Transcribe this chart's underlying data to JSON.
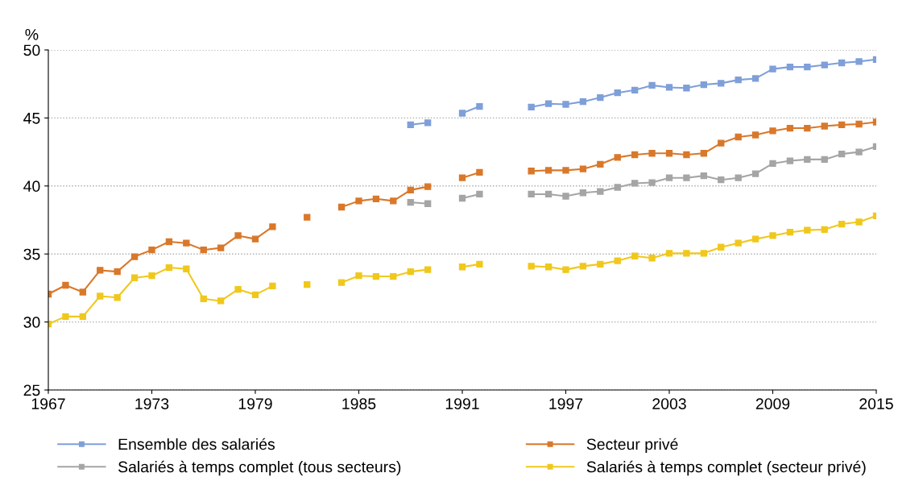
{
  "chart_data": {
    "type": "line",
    "ylabel": "%",
    "x": [
      1967,
      1968,
      1969,
      1970,
      1971,
      1972,
      1973,
      1974,
      1975,
      1976,
      1977,
      1978,
      1979,
      1980,
      1981,
      1982,
      1983,
      1984,
      1985,
      1986,
      1987,
      1988,
      1989,
      1990,
      1991,
      1992,
      1993,
      1994,
      1995,
      1996,
      1997,
      1998,
      1999,
      2000,
      2001,
      2002,
      2003,
      2004,
      2005,
      2006,
      2007,
      2008,
      2009,
      2010,
      2011,
      2012,
      2013,
      2014,
      2015
    ],
    "series": [
      {
        "name": "Ensemble des salariés",
        "color": "#7f9fd9",
        "values": [
          null,
          null,
          null,
          null,
          null,
          null,
          null,
          null,
          null,
          null,
          null,
          null,
          null,
          null,
          null,
          null,
          null,
          null,
          null,
          null,
          null,
          44.5,
          44.65,
          null,
          45.35,
          45.85,
          null,
          null,
          45.8,
          46.05,
          46.0,
          46.2,
          46.5,
          46.85,
          47.05,
          47.4,
          47.25,
          47.2,
          47.45,
          47.55,
          47.8,
          47.9,
          48.6,
          48.75,
          48.75,
          48.9,
          49.05,
          49.15,
          49.3
        ]
      },
      {
        "name": "Secteur privé",
        "color": "#d9782a",
        "values": [
          32.05,
          32.7,
          32.2,
          33.8,
          33.7,
          34.8,
          35.3,
          35.9,
          35.8,
          35.3,
          35.45,
          36.35,
          36.1,
          37.0,
          null,
          37.7,
          null,
          38.45,
          38.9,
          39.05,
          38.9,
          39.7,
          39.95,
          null,
          40.6,
          41.0,
          null,
          null,
          41.1,
          41.15,
          41.15,
          41.25,
          41.6,
          42.1,
          42.3,
          42.4,
          42.4,
          42.3,
          42.4,
          43.15,
          43.6,
          43.75,
          44.05,
          44.25,
          44.25,
          44.4,
          44.5,
          44.55,
          44.7
        ]
      },
      {
        "name": "Salariés à temps complet (tous secteurs)",
        "color": "#a5a5a5",
        "values": [
          null,
          null,
          null,
          null,
          null,
          null,
          null,
          null,
          null,
          null,
          null,
          null,
          null,
          null,
          null,
          null,
          null,
          null,
          null,
          null,
          null,
          38.8,
          38.7,
          null,
          39.1,
          39.4,
          null,
          null,
          39.4,
          39.4,
          39.25,
          39.5,
          39.6,
          39.9,
          40.2,
          40.25,
          40.6,
          40.6,
          40.75,
          40.45,
          40.6,
          40.9,
          41.65,
          41.85,
          41.95,
          41.95,
          42.35,
          42.5,
          42.9
        ]
      },
      {
        "name": "Salariés à temps complet (secteur privé)",
        "color": "#f0c81c",
        "values": [
          29.85,
          30.4,
          30.4,
          31.9,
          31.8,
          33.25,
          33.4,
          34.0,
          33.9,
          31.7,
          31.55,
          32.4,
          32.0,
          32.65,
          null,
          32.75,
          null,
          32.9,
          33.4,
          33.35,
          33.35,
          33.7,
          33.85,
          null,
          34.05,
          34.25,
          null,
          null,
          34.1,
          34.05,
          33.85,
          34.1,
          34.25,
          34.5,
          34.85,
          34.7,
          35.05,
          35.05,
          35.05,
          35.5,
          35.8,
          36.1,
          36.35,
          36.6,
          36.75,
          36.8,
          37.2,
          37.35,
          37.8
        ]
      }
    ],
    "xlim": [
      1967,
      2015
    ],
    "xticks": [
      1967,
      1973,
      1979,
      1985,
      1991,
      1997,
      2003,
      2009,
      2015
    ],
    "ylim": [
      25,
      50
    ],
    "yticks": [
      25,
      30,
      35,
      40,
      45,
      50
    ],
    "grid": "y",
    "legend": "bottom",
    "marker": "square",
    "line_style": "solid"
  }
}
